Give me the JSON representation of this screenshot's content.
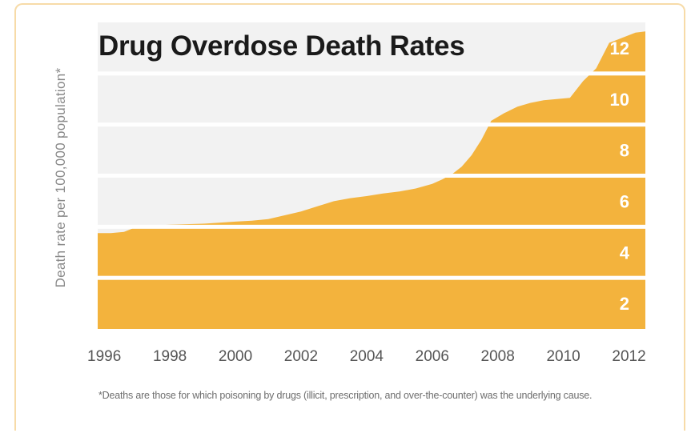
{
  "chart_data": {
    "type": "area",
    "title": "Drug Overdose Death Rates",
    "ylabel": "Death rate per 100,000 population*",
    "xlabel": "",
    "footnote": "*Deaths are those for which poisoning by drugs (illicit, prescription, and over-the-counter) was the underlying cause.",
    "x_ticks": [
      "1996",
      "1998",
      "2000",
      "2002",
      "2004",
      "2006",
      "2008",
      "2010",
      "2012"
    ],
    "y_ticks": [
      "2",
      "4",
      "6",
      "8",
      "10",
      "12"
    ],
    "xlim": [
      1995.8,
      2012.5
    ],
    "ylim": [
      1,
      13
    ],
    "grid": true,
    "colors": {
      "area": "#f3b33d",
      "band": "#f2f2f2",
      "tick_text": "#555555",
      "y_tick_text": "#ffffff"
    },
    "series": [
      {
        "x": [
          1995.8,
          1996.2,
          1996.6,
          1997.0,
          1997.5,
          1998.0,
          1998.5,
          1999.0,
          1999.5,
          2000.0,
          2000.5,
          2001.0,
          2001.5,
          2002.0,
          2002.5,
          2003.0,
          2003.5,
          2004.0,
          2004.5,
          2005.0,
          2005.5,
          2006.0,
          2006.3,
          2006.6,
          2006.9,
          2007.2,
          2007.5,
          2007.8,
          2008.2,
          2008.6,
          2009.0,
          2009.4,
          2009.8,
          2010.2,
          2010.6,
          2011.0,
          2011.4,
          2011.8,
          2012.2,
          2012.5
        ],
        "values": [
          4.75,
          4.75,
          4.8,
          5.0,
          5.05,
          5.08,
          5.1,
          5.12,
          5.16,
          5.2,
          5.24,
          5.3,
          5.45,
          5.6,
          5.8,
          6.0,
          6.12,
          6.2,
          6.3,
          6.38,
          6.5,
          6.68,
          6.85,
          7.05,
          7.35,
          7.8,
          8.4,
          9.15,
          9.45,
          9.7,
          9.85,
          9.95,
          10.0,
          10.05,
          10.7,
          11.2,
          12.2,
          12.4,
          12.6,
          12.65
        ]
      }
    ]
  }
}
